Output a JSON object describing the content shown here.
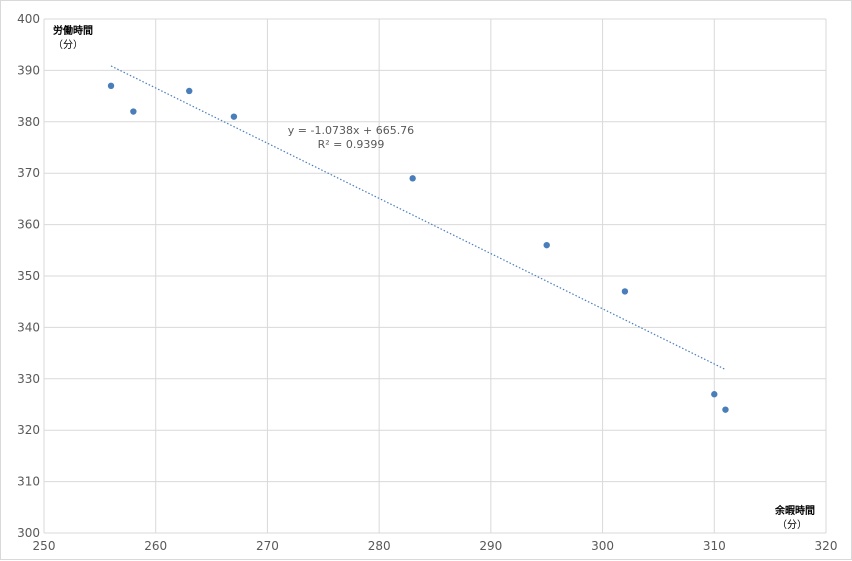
{
  "chart_data": {
    "type": "scatter",
    "title": "",
    "ylabel": "労働時間",
    "ylabel_unit": "（分）",
    "xlabel": "余暇時間",
    "xlabel_unit": "（分）",
    "xlim": [
      250,
      320
    ],
    "ylim": [
      300,
      400
    ],
    "x_ticks": [
      "250",
      "260",
      "270",
      "280",
      "290",
      "300",
      "310",
      "320"
    ],
    "y_ticks": [
      "300",
      "310",
      "320",
      "330",
      "340",
      "350",
      "360",
      "370",
      "380",
      "390",
      "400"
    ],
    "grid": true,
    "legend": "none",
    "series": [
      {
        "points": [
          {
            "x": 256,
            "y": 387
          },
          {
            "x": 258,
            "y": 382
          },
          {
            "x": 263,
            "y": 386
          },
          {
            "x": 267,
            "y": 381
          },
          {
            "x": 283,
            "y": 369
          },
          {
            "x": 295,
            "y": 356
          },
          {
            "x": 302,
            "y": 347
          },
          {
            "x": 310,
            "y": 327
          },
          {
            "x": 311,
            "y": 324
          }
        ],
        "color": "#4a7ebb"
      }
    ],
    "trendline": {
      "type": "linear",
      "slope": -1.0738,
      "intercept": 665.76,
      "x_range": [
        256,
        311
      ],
      "equation_label": "y = -1.0738x + 665.76",
      "r2_label": "R² = 0.9399"
    }
  }
}
